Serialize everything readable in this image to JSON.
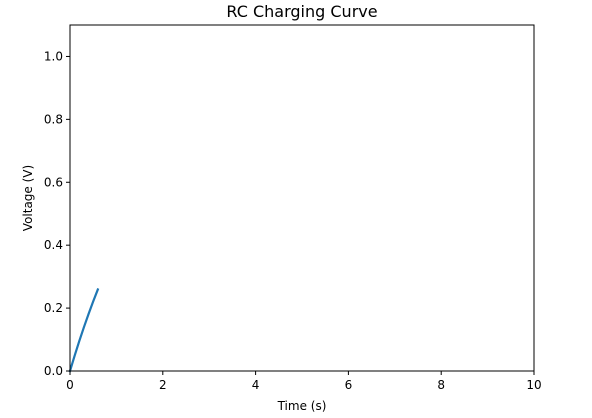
{
  "chart_data": {
    "type": "line",
    "title": "RC Charging Curve",
    "xlabel": "Time (s)",
    "ylabel": "Voltage (V)",
    "xlim": [
      0,
      10
    ],
    "ylim": [
      0,
      1.1
    ],
    "grid": false,
    "x_ticks": [
      "0",
      "2",
      "4",
      "6",
      "8",
      "10"
    ],
    "y_ticks": [
      "0.0",
      "0.2",
      "0.4",
      "0.6",
      "0.8",
      "1.0"
    ],
    "series": [
      {
        "color": "#1f77b4",
        "x": [
          0.0,
          0.1,
          0.2,
          0.3,
          0.4,
          0.5,
          0.6
        ],
        "y": [
          0.0,
          0.0488,
          0.0952,
          0.1393,
          0.1813,
          0.2212,
          0.2592
        ]
      }
    ]
  }
}
